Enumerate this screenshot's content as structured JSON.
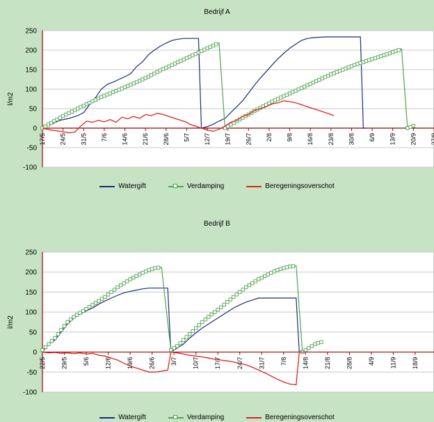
{
  "colors": {
    "background": "#c6e3c3",
    "plot": "#ffffff",
    "axis": "#a00000",
    "grid": "#c8c8c8",
    "watergift": "#1a2a7a",
    "verdamping": "#4ea24e",
    "overschot": "#e02020"
  },
  "chart_data": [
    {
      "type": "line",
      "title": "Bedrijf  A",
      "ylabel": "l/m2",
      "ylim": [
        -100,
        250
      ],
      "yticks": [
        "250",
        "200",
        "150",
        "100",
        "50",
        "0",
        "-50",
        "-100"
      ],
      "grid": true,
      "legend_position": "bottom",
      "x_tick_labels": [
        "17/5",
        "24/5",
        "31/5",
        "7/6",
        "14/6",
        "21/6",
        "28/6",
        "5/7",
        "12/7",
        "19/7",
        "26/7",
        "2/8",
        "9/8",
        "16/8",
        "23/8",
        "30/8",
        "6/9",
        "13/9",
        "20/9",
        "27/9"
      ],
      "series": [
        {
          "name": "Watergift",
          "points": [
            [
              0,
              0
            ],
            [
              3,
              10
            ],
            [
              6,
              20
            ],
            [
              9,
              25
            ],
            [
              12,
              32
            ],
            [
              14,
              40
            ],
            [
              16,
              60
            ],
            [
              18,
              78
            ],
            [
              20,
              100
            ],
            [
              22,
              112
            ],
            [
              24,
              118
            ],
            [
              26,
              125
            ],
            [
              28,
              132
            ],
            [
              30,
              140
            ],
            [
              32,
              158
            ],
            [
              34,
              170
            ],
            [
              36,
              188
            ],
            [
              38,
              200
            ],
            [
              40,
              210
            ],
            [
              42,
              218
            ],
            [
              44,
              225
            ],
            [
              46,
              228
            ],
            [
              48,
              230
            ],
            [
              50,
              230
            ],
            [
              53,
              230
            ],
            [
              54,
              0
            ],
            [
              56,
              4
            ],
            [
              58,
              10
            ],
            [
              60,
              18
            ],
            [
              62,
              25
            ],
            [
              64,
              40
            ],
            [
              66,
              55
            ],
            [
              68,
              70
            ],
            [
              70,
              90
            ],
            [
              72,
              110
            ],
            [
              74,
              128
            ],
            [
              76,
              145
            ],
            [
              78,
              162
            ],
            [
              80,
              178
            ],
            [
              82,
              192
            ],
            [
              84,
              205
            ],
            [
              86,
              215
            ],
            [
              88,
              225
            ],
            [
              90,
              230
            ],
            [
              92,
              232
            ],
            [
              94,
              233
            ],
            [
              96,
              234
            ],
            [
              98,
              234
            ],
            [
              100,
              234
            ],
            [
              102,
              234
            ],
            [
              104,
              234
            ],
            [
              106,
              234
            ],
            [
              108,
              234
            ],
            [
              109,
              0
            ],
            [
              110,
              0
            ]
          ]
        },
        {
          "name": "Verdamping",
          "points": [
            [
              0,
              0
            ],
            [
              4,
              18
            ],
            [
              8,
              35
            ],
            [
              12,
              50
            ],
            [
              16,
              65
            ],
            [
              20,
              80
            ],
            [
              24,
              92
            ],
            [
              28,
              105
            ],
            [
              32,
              118
            ],
            [
              36,
              132
            ],
            [
              40,
              148
            ],
            [
              44,
              162
            ],
            [
              48,
              176
            ],
            [
              52,
              190
            ],
            [
              56,
              205
            ],
            [
              60,
              218
            ],
            [
              62,
              0
            ],
            [
              66,
              18
            ],
            [
              70,
              35
            ],
            [
              74,
              52
            ],
            [
              78,
              68
            ],
            [
              82,
              82
            ],
            [
              86,
              96
            ],
            [
              90,
              110
            ],
            [
              94,
              124
            ],
            [
              98,
              138
            ],
            [
              102,
              150
            ],
            [
              106,
              162
            ],
            [
              110,
              172
            ],
            [
              114,
              182
            ],
            [
              118,
              192
            ],
            [
              122,
              203
            ],
            [
              124,
              0
            ],
            [
              126,
              6
            ]
          ]
        },
        {
          "name": "Beregeningsoverschot",
          "points": [
            [
              0,
              0
            ],
            [
              3,
              -5
            ],
            [
              6,
              -8
            ],
            [
              9,
              -12
            ],
            [
              11,
              -10
            ],
            [
              13,
              5
            ],
            [
              15,
              18
            ],
            [
              17,
              15
            ],
            [
              19,
              20
            ],
            [
              21,
              16
            ],
            [
              23,
              22
            ],
            [
              25,
              15
            ],
            [
              27,
              28
            ],
            [
              29,
              24
            ],
            [
              31,
              30
            ],
            [
              33,
              25
            ],
            [
              35,
              35
            ],
            [
              37,
              32
            ],
            [
              39,
              38
            ],
            [
              41,
              35
            ],
            [
              43,
              30
            ],
            [
              45,
              25
            ],
            [
              47,
              20
            ],
            [
              49,
              15
            ],
            [
              50,
              10
            ],
            [
              54,
              0
            ],
            [
              56,
              -5
            ],
            [
              58,
              -8
            ],
            [
              60,
              -3
            ],
            [
              62,
              5
            ],
            [
              64,
              15
            ],
            [
              66,
              20
            ],
            [
              68,
              30
            ],
            [
              70,
              35
            ],
            [
              72,
              45
            ],
            [
              74,
              50
            ],
            [
              76,
              55
            ],
            [
              78,
              62
            ],
            [
              80,
              65
            ],
            [
              82,
              70
            ],
            [
              84,
              68
            ],
            [
              86,
              65
            ],
            [
              88,
              60
            ],
            [
              90,
              55
            ],
            [
              92,
              50
            ],
            [
              94,
              45
            ],
            [
              96,
              40
            ],
            [
              98,
              35
            ],
            [
              99,
              32
            ]
          ]
        }
      ]
    },
    {
      "type": "line",
      "title": "Bedrijf B",
      "ylabel": "l/m2",
      "ylim": [
        -100,
        250
      ],
      "yticks": [
        "250",
        "200",
        "150",
        "100",
        "50",
        "0",
        "-50",
        "-100"
      ],
      "grid": true,
      "legend_position": "bottom",
      "x_tick_labels": [
        "22/5",
        "29/5",
        "5/6",
        "12/6",
        "19/6",
        "26/6",
        "3/7",
        "10/7",
        "17/7",
        "24/7",
        "31/7",
        "7/8",
        "14/8",
        "21/8",
        "28/8",
        "4/9",
        "11/9",
        "18/9"
      ],
      "series": [
        {
          "name": "Watergift",
          "points": [
            [
              0,
              0
            ],
            [
              2,
              20
            ],
            [
              4,
              30
            ],
            [
              6,
              50
            ],
            [
              8,
              70
            ],
            [
              10,
              85
            ],
            [
              12,
              95
            ],
            [
              14,
              103
            ],
            [
              16,
              110
            ],
            [
              18,
              120
            ],
            [
              20,
              128
            ],
            [
              22,
              135
            ],
            [
              24,
              142
            ],
            [
              26,
              148
            ],
            [
              28,
              152
            ],
            [
              30,
              155
            ],
            [
              32,
              158
            ],
            [
              34,
              160
            ],
            [
              36,
              160
            ],
            [
              38,
              160
            ],
            [
              40,
              160
            ],
            [
              41,
              0
            ],
            [
              43,
              10
            ],
            [
              45,
              20
            ],
            [
              47,
              35
            ],
            [
              49,
              48
            ],
            [
              51,
              60
            ],
            [
              53,
              70
            ],
            [
              55,
              80
            ],
            [
              57,
              90
            ],
            [
              59,
              100
            ],
            [
              61,
              110
            ],
            [
              63,
              118
            ],
            [
              65,
              125
            ],
            [
              67,
              130
            ],
            [
              69,
              135
            ],
            [
              71,
              135
            ],
            [
              73,
              135
            ],
            [
              75,
              135
            ],
            [
              77,
              135
            ],
            [
              79,
              135
            ],
            [
              81,
              135
            ],
            [
              82,
              0
            ],
            [
              84,
              5
            ]
          ]
        },
        {
          "name": "Verdamping",
          "points": [
            [
              0,
              5
            ],
            [
              2,
              20
            ],
            [
              4,
              35
            ],
            [
              6,
              55
            ],
            [
              8,
              75
            ],
            [
              10,
              88
            ],
            [
              12,
              98
            ],
            [
              14,
              108
            ],
            [
              16,
              118
            ],
            [
              18,
              128
            ],
            [
              20,
              138
            ],
            [
              22,
              150
            ],
            [
              24,
              162
            ],
            [
              26,
              172
            ],
            [
              28,
              182
            ],
            [
              30,
              190
            ],
            [
              32,
              198
            ],
            [
              34,
              205
            ],
            [
              36,
              210
            ],
            [
              38,
              212
            ],
            [
              41,
              5
            ],
            [
              43,
              15
            ],
            [
              45,
              30
            ],
            [
              47,
              45
            ],
            [
              49,
              60
            ],
            [
              51,
              75
            ],
            [
              53,
              88
            ],
            [
              55,
              100
            ],
            [
              57,
              112
            ],
            [
              59,
              125
            ],
            [
              61,
              138
            ],
            [
              63,
              150
            ],
            [
              65,
              162
            ],
            [
              67,
              172
            ],
            [
              69,
              182
            ],
            [
              71,
              190
            ],
            [
              73,
              198
            ],
            [
              75,
              205
            ],
            [
              77,
              210
            ],
            [
              79,
              214
            ],
            [
              81,
              216
            ],
            [
              83,
              0
            ],
            [
              85,
              10
            ],
            [
              87,
              20
            ],
            [
              89,
              25
            ]
          ]
        },
        {
          "name": "Beregeningsoverschot",
          "points": [
            [
              0,
              0
            ],
            [
              2,
              -2
            ],
            [
              4,
              -1
            ],
            [
              6,
              -3
            ],
            [
              8,
              -2
            ],
            [
              10,
              -4
            ],
            [
              12,
              -2
            ],
            [
              14,
              -5
            ],
            [
              16,
              -3
            ],
            [
              18,
              -8
            ],
            [
              20,
              -10
            ],
            [
              22,
              -15
            ],
            [
              24,
              -20
            ],
            [
              26,
              -28
            ],
            [
              28,
              -35
            ],
            [
              30,
              -40
            ],
            [
              32,
              -45
            ],
            [
              34,
              -50
            ],
            [
              36,
              -50
            ],
            [
              38,
              -48
            ],
            [
              40,
              -45
            ],
            [
              41,
              0
            ],
            [
              43,
              -2
            ],
            [
              45,
              -5
            ],
            [
              47,
              -8
            ],
            [
              49,
              -10
            ],
            [
              51,
              -12
            ],
            [
              53,
              -15
            ],
            [
              55,
              -18
            ],
            [
              57,
              -20
            ],
            [
              59,
              -22
            ],
            [
              61,
              -25
            ],
            [
              63,
              -28
            ],
            [
              65,
              -32
            ],
            [
              67,
              -38
            ],
            [
              69,
              -45
            ],
            [
              71,
              -52
            ],
            [
              73,
              -60
            ],
            [
              75,
              -68
            ],
            [
              77,
              -75
            ],
            [
              79,
              -80
            ],
            [
              81,
              -82
            ],
            [
              82,
              0
            ],
            [
              84,
              0
            ]
          ]
        }
      ]
    }
  ],
  "legend": {
    "watergift": "Watergift",
    "verdamping": "Verdamping",
    "overschot": "Beregeningsoverschot"
  }
}
